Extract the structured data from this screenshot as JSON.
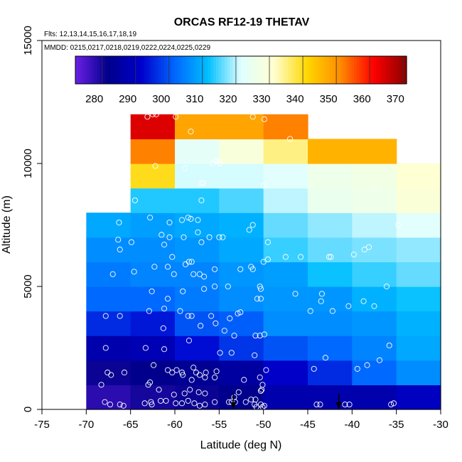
{
  "chart_data": {
    "type": "heatmap",
    "title": "ORCAS RF12-19 THETAV",
    "flights_note": "Flts: 12,13,14,15,16,17,18,19",
    "dates_note": "MMDD: 0215,0217,0218,0219,0222,0224,0225,0229",
    "xlabel": "Latitude (deg N)",
    "ylabel": "Altitude (m)",
    "xlim": [
      -75,
      -30
    ],
    "ylim": [
      0,
      15000
    ],
    "xticks": [
      -75,
      -70,
      -65,
      -60,
      -55,
      -50,
      -45,
      -40,
      -35,
      -30
    ],
    "yticks": [
      0,
      5000,
      10000,
      15000
    ],
    "x_bin_width": 5,
    "y_bin_height": 1000,
    "colorbar": {
      "range": [
        272,
        371
      ],
      "ticks": [
        280,
        290,
        300,
        310,
        320,
        330,
        340,
        350,
        360,
        370
      ],
      "colors": [
        "#6b1fe6",
        "#00008b",
        "#0000cd",
        "#0066ff",
        "#00bfff",
        "#e0ffff",
        "#ffffd0",
        "#ffd700",
        "#ff8c00",
        "#ff0000",
        "#8b0000"
      ]
    },
    "cells": [
      {
        "lat": -70,
        "alt": 0,
        "value": 278
      },
      {
        "lat": -65,
        "alt": 0,
        "value": 280
      },
      {
        "lat": -60,
        "alt": 0,
        "value": 281
      },
      {
        "lat": -55,
        "alt": 0,
        "value": 282
      },
      {
        "lat": -50,
        "alt": 0,
        "value": 287
      },
      {
        "lat": -45,
        "alt": 0,
        "value": 287
      },
      {
        "lat": -40,
        "alt": 0,
        "value": 287
      },
      {
        "lat": -35,
        "alt": 0,
        "value": 290
      },
      {
        "lat": -70,
        "alt": 1000,
        "value": 281
      },
      {
        "lat": -65,
        "alt": 1000,
        "value": 282
      },
      {
        "lat": -60,
        "alt": 1000,
        "value": 283
      },
      {
        "lat": -55,
        "alt": 1000,
        "value": 285
      },
      {
        "lat": -50,
        "alt": 1000,
        "value": 291
      },
      {
        "lat": -45,
        "alt": 1000,
        "value": 296
      },
      {
        "lat": -40,
        "alt": 1000,
        "value": 302
      },
      {
        "lat": -35,
        "alt": 1000,
        "value": 306
      },
      {
        "lat": -70,
        "alt": 2000,
        "value": 287
      },
      {
        "lat": -65,
        "alt": 2000,
        "value": 288
      },
      {
        "lat": -60,
        "alt": 2000,
        "value": 293
      },
      {
        "lat": -55,
        "alt": 2000,
        "value": 297
      },
      {
        "lat": -50,
        "alt": 2000,
        "value": 300
      },
      {
        "lat": -45,
        "alt": 2000,
        "value": 302
      },
      {
        "lat": -40,
        "alt": 2000,
        "value": 305
      },
      {
        "lat": -35,
        "alt": 2000,
        "value": 309
      },
      {
        "lat": -70,
        "alt": 3000,
        "value": 296
      },
      {
        "lat": -65,
        "alt": 3000,
        "value": 294
      },
      {
        "lat": -60,
        "alt": 3000,
        "value": 300
      },
      {
        "lat": -55,
        "alt": 3000,
        "value": 301
      },
      {
        "lat": -50,
        "alt": 3000,
        "value": 306
      },
      {
        "lat": -45,
        "alt": 3000,
        "value": 306
      },
      {
        "lat": -40,
        "alt": 3000,
        "value": 307
      },
      {
        "lat": -35,
        "alt": 3000,
        "value": 310
      },
      {
        "lat": -70,
        "alt": 4000,
        "value": 302
      },
      {
        "lat": -65,
        "alt": 4000,
        "value": 302
      },
      {
        "lat": -60,
        "alt": 4000,
        "value": 304
      },
      {
        "lat": -55,
        "alt": 4000,
        "value": 306
      },
      {
        "lat": -50,
        "alt": 4000,
        "value": 307
      },
      {
        "lat": -45,
        "alt": 4000,
        "value": 307
      },
      {
        "lat": -40,
        "alt": 4000,
        "value": 310
      },
      {
        "lat": -35,
        "alt": 4000,
        "value": 312
      },
      {
        "lat": -70,
        "alt": 5000,
        "value": 304
      },
      {
        "lat": -65,
        "alt": 5000,
        "value": 305
      },
      {
        "lat": -60,
        "alt": 5000,
        "value": 305
      },
      {
        "lat": -55,
        "alt": 5000,
        "value": 307
      },
      {
        "lat": -50,
        "alt": 5000,
        "value": 308
      },
      {
        "lat": -45,
        "alt": 5000,
        "value": 312
      },
      {
        "lat": -40,
        "alt": 5000,
        "value": 314
      },
      {
        "lat": -35,
        "alt": 5000,
        "value": 316
      },
      {
        "lat": -70,
        "alt": 6000,
        "value": 306
      },
      {
        "lat": -65,
        "alt": 6000,
        "value": 306
      },
      {
        "lat": -60,
        "alt": 6000,
        "value": 307
      },
      {
        "lat": -55,
        "alt": 6000,
        "value": 309
      },
      {
        "lat": -50,
        "alt": 6000,
        "value": 314
      },
      {
        "lat": -45,
        "alt": 6000,
        "value": 316
      },
      {
        "lat": -40,
        "alt": 6000,
        "value": 317
      },
      {
        "lat": -35,
        "alt": 6000,
        "value": 318
      },
      {
        "lat": -70,
        "alt": 7000,
        "value": 309
      },
      {
        "lat": -65,
        "alt": 7000,
        "value": 308
      },
      {
        "lat": -60,
        "alt": 7000,
        "value": 309
      },
      {
        "lat": -55,
        "alt": 7000,
        "value": 310
      },
      {
        "lat": -50,
        "alt": 7000,
        "value": 316
      },
      {
        "lat": -45,
        "alt": 7000,
        "value": 318
      },
      {
        "lat": -40,
        "alt": 7000,
        "value": 320
      },
      {
        "lat": -35,
        "alt": 7000,
        "value": 322
      },
      {
        "lat": -65,
        "alt": 8000,
        "value": 313
      },
      {
        "lat": -60,
        "alt": 8000,
        "value": 313
      },
      {
        "lat": -55,
        "alt": 8000,
        "value": 315
      },
      {
        "lat": -50,
        "alt": 8000,
        "value": 320
      },
      {
        "lat": -45,
        "alt": 8000,
        "value": 325
      },
      {
        "lat": -40,
        "alt": 8000,
        "value": 326
      },
      {
        "lat": -35,
        "alt": 8000,
        "value": 330
      },
      {
        "lat": -65,
        "alt": 9000,
        "value": 340
      },
      {
        "lat": -60,
        "alt": 9000,
        "value": 321
      },
      {
        "lat": -55,
        "alt": 9000,
        "value": 321
      },
      {
        "lat": -50,
        "alt": 9000,
        "value": 322
      },
      {
        "lat": -45,
        "alt": 9000,
        "value": 326
      },
      {
        "lat": -40,
        "alt": 9000,
        "value": 327
      },
      {
        "lat": -35,
        "alt": 9000,
        "value": 331
      },
      {
        "lat": -65,
        "alt": 10000,
        "value": 352
      },
      {
        "lat": -60,
        "alt": 10000,
        "value": 323
      },
      {
        "lat": -55,
        "alt": 10000,
        "value": 329
      },
      {
        "lat": -50,
        "alt": 10000,
        "value": 335
      },
      {
        "lat": -45,
        "alt": 10000,
        "value": 346
      },
      {
        "lat": -40,
        "alt": 10000,
        "value": 346
      },
      {
        "lat": -65,
        "alt": 11000,
        "value": 364
      },
      {
        "lat": -60,
        "alt": 11000,
        "value": 348
      },
      {
        "lat": -55,
        "alt": 11000,
        "value": 348
      },
      {
        "lat": -50,
        "alt": 11000,
        "value": 352
      }
    ],
    "points": [
      [
        -67.9,
        300
      ],
      [
        -67.3,
        200
      ],
      [
        -66.2,
        200
      ],
      [
        -65.8,
        150
      ],
      [
        -63.4,
        250
      ],
      [
        -62.7,
        300
      ],
      [
        -62.6,
        200
      ],
      [
        -61.6,
        350
      ],
      [
        -61.0,
        350
      ],
      [
        -59.9,
        250
      ],
      [
        -59.2,
        250
      ],
      [
        -58.5,
        350
      ],
      [
        -57.8,
        250
      ],
      [
        -57.2,
        150
      ],
      [
        -56.6,
        200
      ],
      [
        -53.9,
        300
      ],
      [
        -53.6,
        300
      ],
      [
        -53.2,
        300
      ],
      [
        -52.0,
        300
      ],
      [
        -51.4,
        400
      ],
      [
        -51.0,
        200
      ],
      [
        -50.8,
        100
      ],
      [
        -50.3,
        200
      ],
      [
        -50.1,
        100
      ],
      [
        -49.9,
        150
      ],
      [
        -50.9,
        400
      ],
      [
        -55.5,
        300
      ],
      [
        -44.0,
        200
      ],
      [
        -43.6,
        200
      ],
      [
        -40.8,
        200
      ],
      [
        -40.3,
        200
      ],
      [
        -35.6,
        200
      ],
      [
        -35.3,
        250
      ],
      [
        -61.8,
        800
      ],
      [
        -58.3,
        800
      ],
      [
        -57.3,
        700
      ],
      [
        -56.6,
        650
      ],
      [
        -58.9,
        650
      ],
      [
        -60.1,
        600
      ],
      [
        -52.8,
        700
      ],
      [
        -50.2,
        800
      ],
      [
        -63.0,
        1000
      ],
      [
        -62.8,
        1100
      ],
      [
        -59.2,
        1500
      ],
      [
        -56.5,
        1500
      ],
      [
        -52.2,
        1200
      ],
      [
        -68.3,
        1000
      ],
      [
        -67.6,
        1500
      ],
      [
        -67.2,
        1400
      ],
      [
        -65.7,
        1500
      ],
      [
        -62.4,
        1800
      ],
      [
        -60.8,
        1600
      ],
      [
        -60.3,
        1500
      ],
      [
        -59.8,
        1600
      ],
      [
        -59.1,
        1400
      ],
      [
        -58.1,
        1200
      ],
      [
        -57.9,
        1700
      ],
      [
        -57.6,
        1500
      ],
      [
        -57.2,
        1400
      ],
      [
        -56.6,
        1300
      ],
      [
        -55.5,
        1300
      ],
      [
        -55.3,
        1550
      ],
      [
        -53.3,
        500
      ],
      [
        -50.1,
        1000
      ],
      [
        -50.3,
        750
      ],
      [
        -50.4,
        1300
      ],
      [
        -44.3,
        1650
      ],
      [
        -43.0,
        2100
      ],
      [
        -39.4,
        1650
      ],
      [
        -38.3,
        1800
      ],
      [
        -36.9,
        2000
      ],
      [
        -67.8,
        2500
      ],
      [
        -63.3,
        2500
      ],
      [
        -61.2,
        2450
      ],
      [
        -58.4,
        2800
      ],
      [
        -54.9,
        2300
      ],
      [
        -53.6,
        2300
      ],
      [
        -51.0,
        2200
      ],
      [
        -49.7,
        1600
      ],
      [
        -55.4,
        3500
      ],
      [
        -54.4,
        3200
      ],
      [
        -53.3,
        3000
      ],
      [
        -50.9,
        3000
      ],
      [
        -50.4,
        3000
      ],
      [
        -49.9,
        3050
      ],
      [
        -52.6,
        3950
      ],
      [
        -52.9,
        3900
      ],
      [
        -53.8,
        3700
      ],
      [
        -58.5,
        3800
      ],
      [
        -57.1,
        3400
      ],
      [
        -61.3,
        3300
      ],
      [
        -61.2,
        4100
      ],
      [
        -59.4,
        4000
      ],
      [
        -58.1,
        3800
      ],
      [
        -55.9,
        3800
      ],
      [
        -44.7,
        4000
      ],
      [
        -43.5,
        4400
      ],
      [
        -42.2,
        4000
      ],
      [
        -40.4,
        4200
      ],
      [
        -38.7,
        4400
      ],
      [
        -37.5,
        4200
      ],
      [
        -35.8,
        2600
      ],
      [
        -62.9,
        4000
      ],
      [
        -67.8,
        3800
      ],
      [
        -66.2,
        3800
      ],
      [
        -62.6,
        4800
      ],
      [
        -60.8,
        4500
      ],
      [
        -59.1,
        4800
      ],
      [
        -56.7,
        4900
      ],
      [
        -55.5,
        5000
      ],
      [
        -54.0,
        5000
      ],
      [
        -50.4,
        5000
      ],
      [
        -50.3,
        4900
      ],
      [
        -50.7,
        4500
      ],
      [
        -50.3,
        4500
      ],
      [
        -46.4,
        4700
      ],
      [
        -43.4,
        4700
      ],
      [
        -36.1,
        5000
      ],
      [
        -57.9,
        5500
      ],
      [
        -57.2,
        5500
      ],
      [
        -56.7,
        5400
      ],
      [
        -60.1,
        5500
      ],
      [
        -67.0,
        5500
      ],
      [
        -64.6,
        5600
      ],
      [
        -62.3,
        5800
      ],
      [
        -60.8,
        5800
      ],
      [
        -58.8,
        5900
      ],
      [
        -58.4,
        6000
      ],
      [
        -58.1,
        6000
      ],
      [
        -55.5,
        5700
      ],
      [
        -52.6,
        5700
      ],
      [
        -51.4,
        5800
      ],
      [
        -51.2,
        5700
      ],
      [
        -50.0,
        6000
      ],
      [
        -49.5,
        6100
      ],
      [
        -47.5,
        6200
      ],
      [
        -45.8,
        6200
      ],
      [
        -42.6,
        6200
      ],
      [
        -42.4,
        6200
      ],
      [
        -39.8,
        6300
      ],
      [
        -38.6,
        6500
      ],
      [
        -38.1,
        6600
      ],
      [
        -66.2,
        6500
      ],
      [
        -60.3,
        6200
      ],
      [
        -57.0,
        6800
      ],
      [
        -55.0,
        7000
      ],
      [
        -56.1,
        7000
      ],
      [
        -61.2,
        6700
      ],
      [
        -64.9,
        6800
      ],
      [
        -66.4,
        6900
      ],
      [
        -59.0,
        7000
      ],
      [
        -57.4,
        7200
      ],
      [
        -60.6,
        7000
      ],
      [
        -54.6,
        7000
      ],
      [
        -61.5,
        7100
      ],
      [
        -51.6,
        7300
      ],
      [
        -51.2,
        7500
      ],
      [
        -49.5,
        6800
      ],
      [
        -34.8,
        7500
      ],
      [
        -60.6,
        7600
      ],
      [
        -59.2,
        7700
      ],
      [
        -58.5,
        7800
      ],
      [
        -58.2,
        7750
      ],
      [
        -57.4,
        7700
      ],
      [
        -66.3,
        7600
      ],
      [
        -62.8,
        7800
      ],
      [
        -57.0,
        8500
      ],
      [
        -64.5,
        8500
      ],
      [
        -56.8,
        9200
      ],
      [
        -58.9,
        9800
      ],
      [
        -57.0,
        9200
      ],
      [
        -55.7,
        10000
      ],
      [
        -55.3,
        10100
      ],
      [
        -55.0,
        10100
      ],
      [
        -62.2,
        9900
      ],
      [
        -54.9,
        10000
      ],
      [
        -55.0,
        10100
      ],
      [
        -50.0,
        9100
      ],
      [
        -37.3,
        8900
      ],
      [
        -58.2,
        11300
      ],
      [
        -63.1,
        11900
      ],
      [
        -62.5,
        12000
      ],
      [
        -62.1,
        12000
      ],
      [
        -59.9,
        11900
      ],
      [
        -51.2,
        11900
      ],
      [
        -49.9,
        11800
      ],
      [
        -47.0,
        11000
      ]
    ],
    "arrows_at_lat": [
      -53.4,
      -41.5
    ]
  }
}
